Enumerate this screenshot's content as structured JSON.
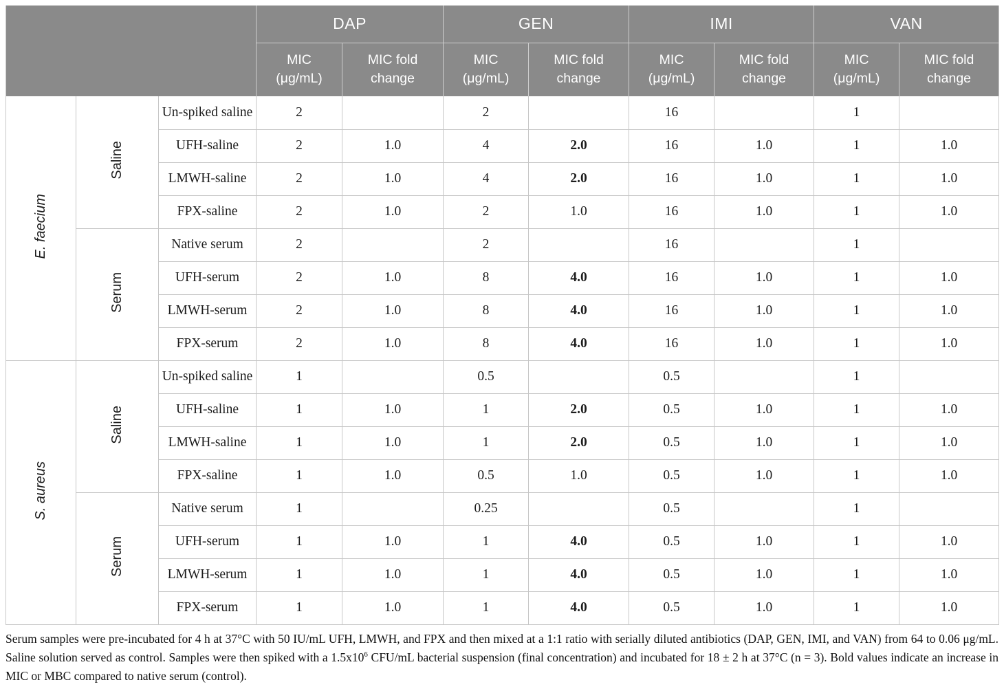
{
  "colors": {
    "header_bg": "#8a8a8a",
    "header_text": "#ffffff",
    "border": "#c6c6c6",
    "body_text": "#1c1c1c"
  },
  "header": {
    "antibiotics": [
      "DAP",
      "GEN",
      "IMI",
      "VAN"
    ],
    "mic_label": "MIC (μg/mL)",
    "fold_label": "MIC fold change"
  },
  "table": {
    "sections": [
      {
        "organism": "E. faecium",
        "groups": [
          {
            "name": "Saline",
            "rows": [
              {
                "label": "Un-spiked saline",
                "cells": [
                  "2",
                  "",
                  "2",
                  "",
                  "16",
                  "",
                  "1",
                  ""
                ],
                "bold": [
                  0,
                  0,
                  0,
                  0,
                  0,
                  0,
                  0,
                  0
                ]
              },
              {
                "label": "UFH-saline",
                "cells": [
                  "2",
                  "1.0",
                  "4",
                  "2.0",
                  "16",
                  "1.0",
                  "1",
                  "1.0"
                ],
                "bold": [
                  0,
                  0,
                  0,
                  1,
                  0,
                  0,
                  0,
                  0
                ]
              },
              {
                "label": "LMWH-saline",
                "cells": [
                  "2",
                  "1.0",
                  "4",
                  "2.0",
                  "16",
                  "1.0",
                  "1",
                  "1.0"
                ],
                "bold": [
                  0,
                  0,
                  0,
                  1,
                  0,
                  0,
                  0,
                  0
                ]
              },
              {
                "label": "FPX-saline",
                "cells": [
                  "2",
                  "1.0",
                  "2",
                  "1.0",
                  "16",
                  "1.0",
                  "1",
                  "1.0"
                ],
                "bold": [
                  0,
                  0,
                  0,
                  0,
                  0,
                  0,
                  0,
                  0
                ]
              }
            ]
          },
          {
            "name": "Serum",
            "rows": [
              {
                "label": "Native serum",
                "cells": [
                  "2",
                  "",
                  "2",
                  "",
                  "16",
                  "",
                  "1",
                  ""
                ],
                "bold": [
                  0,
                  0,
                  0,
                  0,
                  0,
                  0,
                  0,
                  0
                ]
              },
              {
                "label": "UFH-serum",
                "cells": [
                  "2",
                  "1.0",
                  "8",
                  "4.0",
                  "16",
                  "1.0",
                  "1",
                  "1.0"
                ],
                "bold": [
                  0,
                  0,
                  0,
                  1,
                  0,
                  0,
                  0,
                  0
                ]
              },
              {
                "label": "LMWH-serum",
                "cells": [
                  "2",
                  "1.0",
                  "8",
                  "4.0",
                  "16",
                  "1.0",
                  "1",
                  "1.0"
                ],
                "bold": [
                  0,
                  0,
                  0,
                  1,
                  0,
                  0,
                  0,
                  0
                ]
              },
              {
                "label": "FPX-serum",
                "cells": [
                  "2",
                  "1.0",
                  "8",
                  "4.0",
                  "16",
                  "1.0",
                  "1",
                  "1.0"
                ],
                "bold": [
                  0,
                  0,
                  0,
                  1,
                  0,
                  0,
                  0,
                  0
                ]
              }
            ]
          }
        ]
      },
      {
        "organism": "S. aureus",
        "groups": [
          {
            "name": "Saline",
            "rows": [
              {
                "label": "Un-spiked saline",
                "cells": [
                  "1",
                  "",
                  "0.5",
                  "",
                  "0.5",
                  "",
                  "1",
                  ""
                ],
                "bold": [
                  0,
                  0,
                  0,
                  0,
                  0,
                  0,
                  0,
                  0
                ]
              },
              {
                "label": "UFH-saline",
                "cells": [
                  "1",
                  "1.0",
                  "1",
                  "2.0",
                  "0.5",
                  "1.0",
                  "1",
                  "1.0"
                ],
                "bold": [
                  0,
                  0,
                  0,
                  1,
                  0,
                  0,
                  0,
                  0
                ]
              },
              {
                "label": "LMWH-saline",
                "cells": [
                  "1",
                  "1.0",
                  "1",
                  "2.0",
                  "0.5",
                  "1.0",
                  "1",
                  "1.0"
                ],
                "bold": [
                  0,
                  0,
                  0,
                  1,
                  0,
                  0,
                  0,
                  0
                ]
              },
              {
                "label": "FPX-saline",
                "cells": [
                  "1",
                  "1.0",
                  "0.5",
                  "1.0",
                  "0.5",
                  "1.0",
                  "1",
                  "1.0"
                ],
                "bold": [
                  0,
                  0,
                  0,
                  0,
                  0,
                  0,
                  0,
                  0
                ]
              }
            ]
          },
          {
            "name": "Serum",
            "rows": [
              {
                "label": "Native serum",
                "cells": [
                  "1",
                  "",
                  "0.25",
                  "",
                  "0.5",
                  "",
                  "1",
                  ""
                ],
                "bold": [
                  0,
                  0,
                  0,
                  0,
                  0,
                  0,
                  0,
                  0
                ]
              },
              {
                "label": "UFH-serum",
                "cells": [
                  "1",
                  "1.0",
                  "1",
                  "4.0",
                  "0.5",
                  "1.0",
                  "1",
                  "1.0"
                ],
                "bold": [
                  0,
                  0,
                  0,
                  1,
                  0,
                  0,
                  0,
                  0
                ]
              },
              {
                "label": "LMWH-serum",
                "cells": [
                  "1",
                  "1.0",
                  "1",
                  "4.0",
                  "0.5",
                  "1.0",
                  "1",
                  "1.0"
                ],
                "bold": [
                  0,
                  0,
                  0,
                  1,
                  0,
                  0,
                  0,
                  0
                ]
              },
              {
                "label": "FPX-serum",
                "cells": [
                  "1",
                  "1.0",
                  "1",
                  "4.0",
                  "0.5",
                  "1.0",
                  "1",
                  "1.0"
                ],
                "bold": [
                  0,
                  0,
                  0,
                  1,
                  0,
                  0,
                  0,
                  0
                ]
              }
            ]
          }
        ]
      }
    ]
  },
  "footnote": {
    "part1": "Serum samples were pre-incubated for 4 h at 37°C with 50 IU/mL UFH, LMWH, and FPX and then mixed at a 1:1 ratio with serially diluted antibiotics (DAP, GEN, IMI, and VAN) from 64 to 0.06 μg/mL. Saline solution served as control. Samples were then spiked with a 1.5x10",
    "sup": "6",
    "part2": " CFU/mL bacterial suspension (final concentration) and incubated for 18 ± 2 h at 37°C (n = 3). Bold values indicate an increase in MIC or MBC compared to native serum (control)."
  }
}
